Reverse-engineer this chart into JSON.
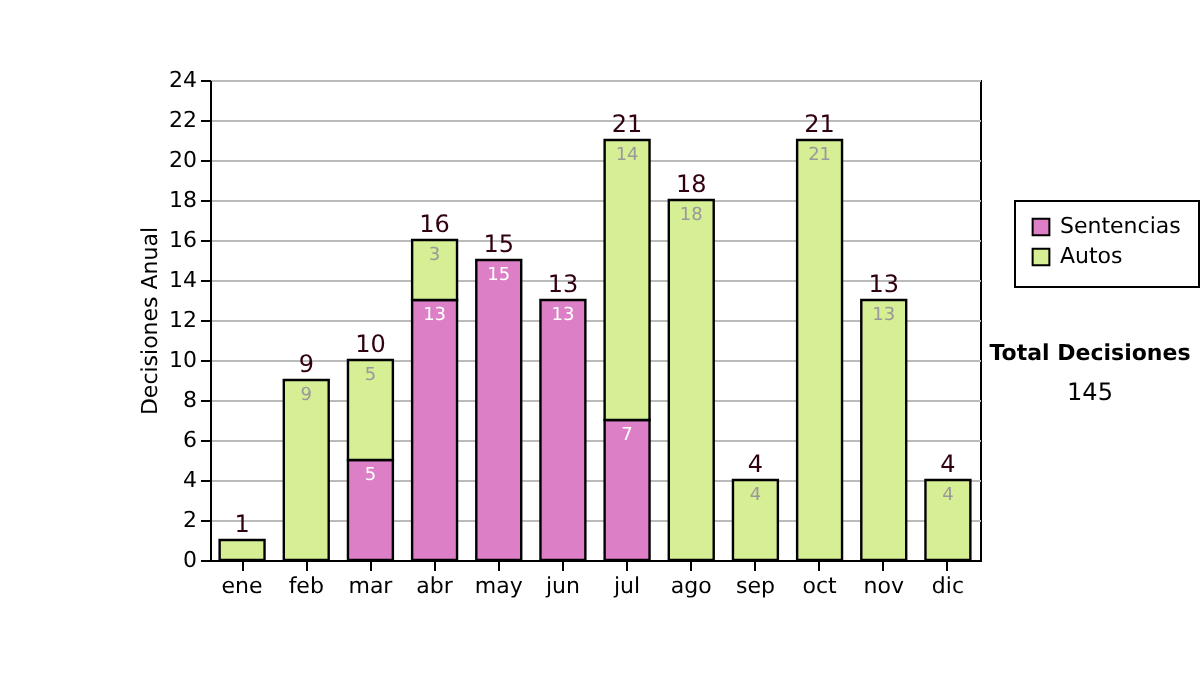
{
  "chart_data": {
    "type": "bar",
    "stacked": true,
    "ylabel": "Decisiones Anual",
    "categories": [
      "ene",
      "feb",
      "mar",
      "abr",
      "may",
      "jun",
      "jul",
      "ago",
      "sep",
      "oct",
      "nov",
      "dic"
    ],
    "series": [
      {
        "name": "Sentencias",
        "color": "#dd7fc6",
        "values": [
          null,
          null,
          5,
          13,
          15,
          13,
          7,
          null,
          null,
          null,
          null,
          null
        ],
        "value_labels": [
          null,
          null,
          "5",
          "13",
          "15",
          "13",
          "7",
          null,
          null,
          null,
          null,
          null
        ]
      },
      {
        "name": "Autos",
        "color": "#d6ee94",
        "values": [
          1,
          9,
          5,
          3,
          null,
          null,
          14,
          18,
          4,
          21,
          13,
          4
        ],
        "value_labels": [
          null,
          "9",
          "5",
          "3",
          null,
          null,
          "14",
          "18",
          "4",
          "21",
          "13",
          "4"
        ]
      }
    ],
    "totals": [
      "1",
      "9",
      "10",
      "16",
      "15",
      "13",
      "21",
      "18",
      "4",
      "21",
      "13",
      "4"
    ],
    "ylim": [
      0,
      24
    ],
    "yticks": [
      0,
      2,
      4,
      6,
      8,
      10,
      12,
      14,
      16,
      18,
      20,
      22,
      24
    ],
    "grid": "y",
    "legend": "right",
    "annotations": [
      "Total Decisiones",
      "145"
    ]
  }
}
